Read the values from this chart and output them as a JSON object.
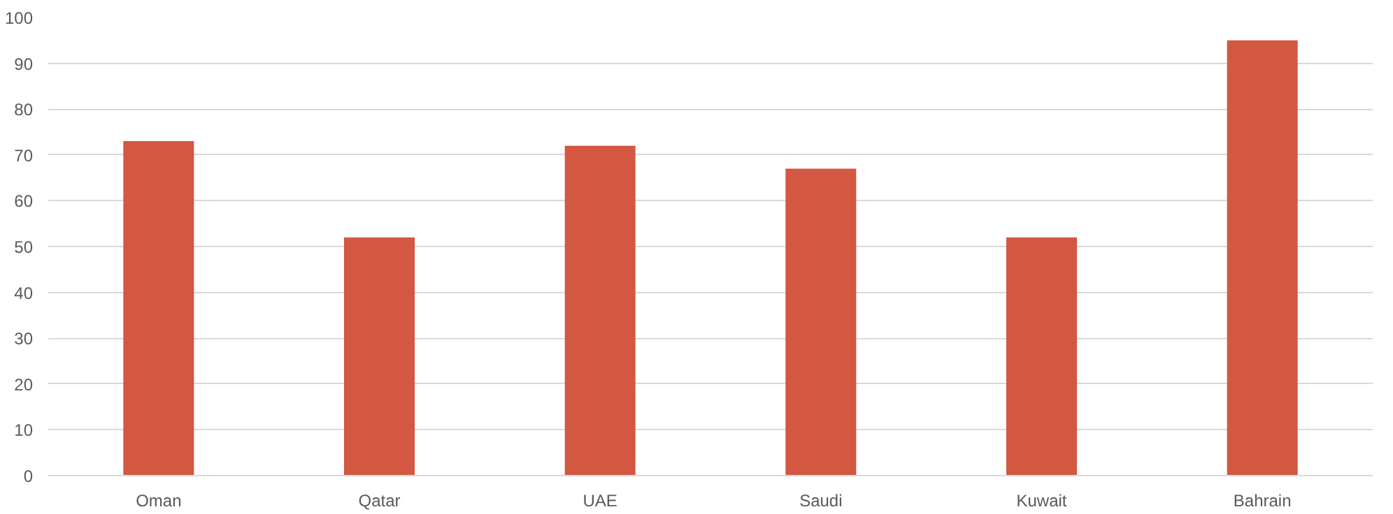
{
  "chart_data": {
    "type": "bar",
    "categories": [
      "Oman",
      "Qatar",
      "UAE",
      "Saudi",
      "Kuwait",
      "Bahrain"
    ],
    "values": [
      73,
      52,
      72,
      67,
      52,
      95
    ],
    "color": "#d35741",
    "ylim": [
      0,
      100
    ],
    "yticks": [
      0,
      10,
      20,
      30,
      40,
      50,
      60,
      70,
      80,
      90,
      100
    ],
    "grid": "y"
  }
}
